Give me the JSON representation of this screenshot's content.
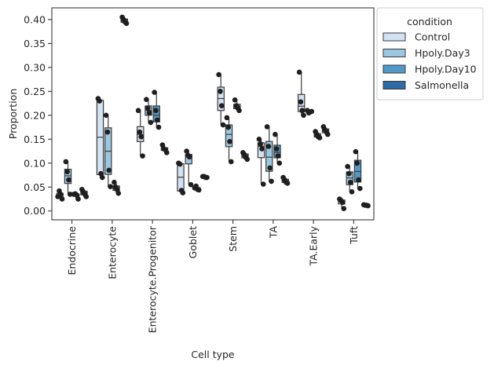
{
  "chart_data": {
    "type": "box",
    "xlabel": "Cell type",
    "ylabel": "Proportion",
    "ylim": [
      -0.0185,
      0.4245
    ],
    "yticks": [
      0.0,
      0.05,
      0.1,
      0.15,
      0.2,
      0.25,
      0.3,
      0.35,
      0.4
    ],
    "ytick_labels": [
      "0.00",
      "0.05",
      "0.10",
      "0.15",
      "0.20",
      "0.25",
      "0.30",
      "0.35",
      "0.40"
    ],
    "categories": [
      "Endocrine",
      "Enterocyte",
      "Enterocyte.Progenitor",
      "Goblet",
      "Stem",
      "TA",
      "TA.Early",
      "Tuft"
    ],
    "legend": {
      "title": "condition",
      "placement": "outside upper right",
      "entries": [
        "Control",
        "Hpoly.Day3",
        "Hpoly.Day10",
        "Salmonella"
      ]
    },
    "colors": {
      "Control": "#d1e2f2",
      "Hpoly.Day3": "#9ac8e0",
      "Hpoly.Day10": "#5099c9",
      "Salmonella": "#2e6aa6",
      "point": "#1f1f1f",
      "edge": "#3a3a3a"
    },
    "series": [
      {
        "name": "Control",
        "points": [
          [
            0.03,
            0.042,
            0.035,
            0.025
          ],
          [
            0.235,
            0.23,
            0.078,
            0.07
          ],
          [
            0.21,
            0.165,
            0.155,
            0.115
          ],
          [
            0.1,
            0.098,
            0.043,
            0.038
          ],
          [
            0.285,
            0.25,
            0.22,
            0.18
          ],
          [
            0.15,
            0.14,
            0.13,
            0.056
          ],
          [
            0.29,
            0.228,
            0.21,
            0.2
          ],
          [
            0.025,
            0.022,
            0.018,
            0.005
          ]
        ]
      },
      {
        "name": "Hpoly.Day3",
        "points": [
          [
            0.103,
            0.082,
            0.065,
            0.035
          ],
          [
            0.2,
            0.165,
            0.085,
            0.051
          ],
          [
            0.233,
            0.215,
            0.205,
            0.185
          ],
          [
            0.125,
            0.116,
            0.113,
            0.055
          ],
          [
            0.195,
            0.175,
            0.145,
            0.103
          ],
          [
            0.176,
            0.135,
            0.09,
            0.062
          ],
          [
            0.21,
            0.205,
            0.207,
            0.208
          ],
          [
            0.093,
            0.078,
            0.06,
            0.04
          ]
        ]
      },
      {
        "name": "Hpoly.Day10",
        "points": [
          [
            0.035,
            0.036,
            0.033,
            0.025
          ],
          [
            0.06,
            0.05,
            0.045,
            0.037
          ],
          [
            0.248,
            0.21,
            0.19,
            0.175
          ],
          [
            0.048,
            0.052,
            0.045,
            0.044
          ],
          [
            0.232,
            0.22,
            0.215,
            0.21
          ],
          [
            0.16,
            0.13,
            0.115,
            0.1
          ],
          [
            0.166,
            0.16,
            0.155,
            0.153
          ],
          [
            0.124,
            0.1,
            0.065,
            0.047
          ]
        ]
      },
      {
        "name": "Salmonella",
        "points": [
          [
            0.045,
            0.04,
            0.035,
            0.03
          ],
          [
            0.405,
            0.4,
            0.395,
            0.392
          ],
          [
            0.138,
            0.13,
            0.128,
            0.122
          ],
          [
            0.072,
            0.072,
            0.07,
            0.07
          ],
          [
            0.122,
            0.118,
            0.112,
            0.108
          ],
          [
            0.07,
            0.065,
            0.06,
            0.058
          ],
          [
            0.176,
            0.17,
            0.165,
            0.16
          ],
          [
            0.013,
            0.012,
            0.012,
            0.011
          ]
        ]
      }
    ]
  }
}
